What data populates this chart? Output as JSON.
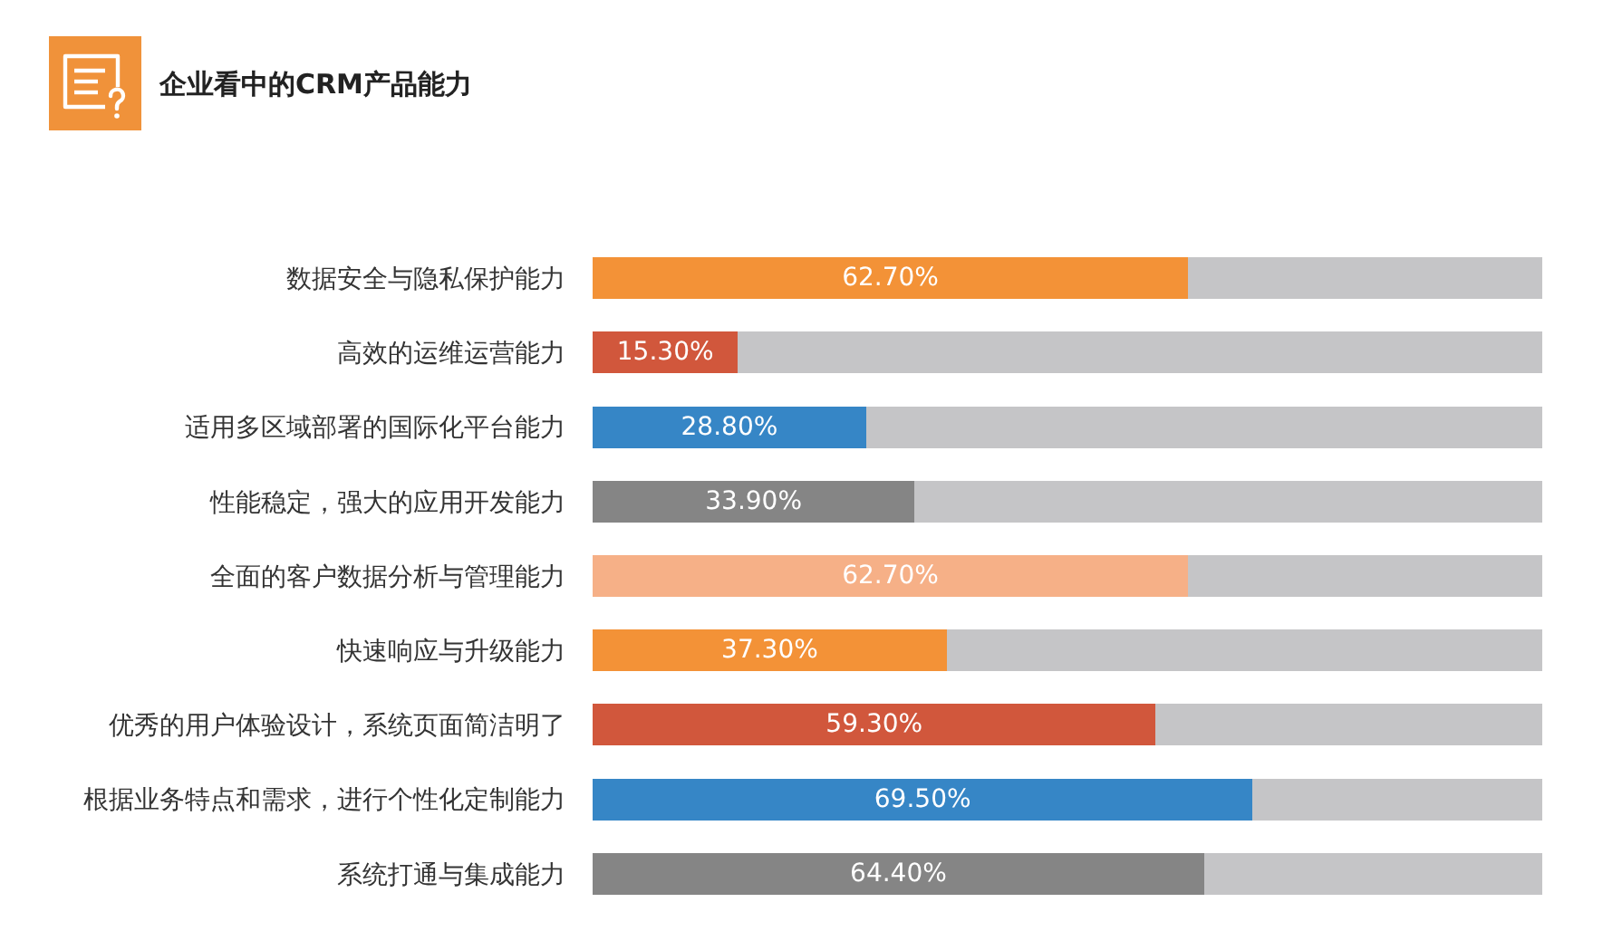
{
  "chart_data": {
    "type": "bar",
    "orientation": "horizontal",
    "stacked": true,
    "title": "企业看中的CRM产品能力",
    "categories": [
      "数据安全与隐私保护能力",
      "高效的运维运营能力",
      "适用多区域部署的国际化平台能力",
      "性能稳定，强大的应用开发能力",
      "全面的客户数据分析与管理能力",
      "快速响应与升级能力",
      "优秀的用户体验设计，系统页面简洁明了",
      "根据业务特点和需求，进行个性化定制能力",
      "系统打通与集成能力"
    ],
    "series": [
      {
        "colors": [
          "#f39237",
          "#d1573c",
          "#3686c6",
          "#858585",
          "#f6b087",
          "#f39237",
          "#d1573c",
          "#3686c6",
          "#858585"
        ],
        "values": [
          62.7,
          15.3,
          28.8,
          33.9,
          62.7,
          37.3,
          59.3,
          69.5,
          64.4
        ],
        "value_labels": [
          "62.70%",
          "15.30%",
          "28.80%",
          "33.90%",
          "62.70%",
          "37.30%",
          "59.30%",
          "69.50%",
          "64.40%"
        ]
      },
      {
        "color": "#c5c5c7",
        "values": [
          37.3,
          84.7,
          71.2,
          66.1,
          37.3,
          62.7,
          40.7,
          30.5,
          35.6
        ]
      }
    ],
    "xlim": [
      0,
      100
    ],
    "tick_labels": "y"
  }
}
